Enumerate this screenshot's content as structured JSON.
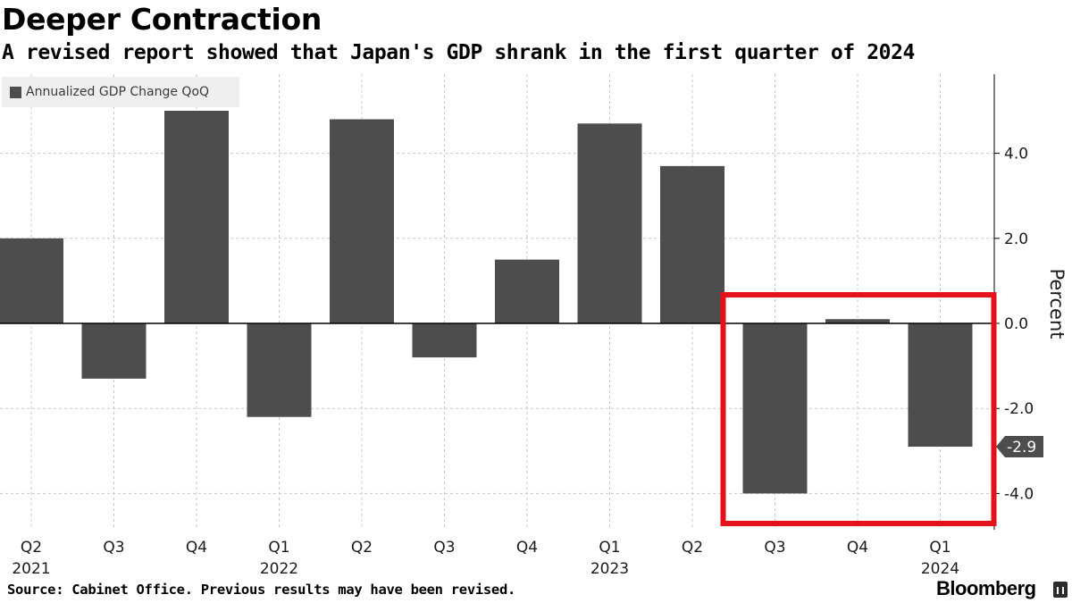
{
  "title": "Deeper Contraction",
  "subtitle": "A revised report showed that Japan's GDP shrank in the first quarter of 2024",
  "legend_label": "Annualized GDP Change QoQ",
  "source": "Source: Cabinet Office. Previous results may have been revised.",
  "brand": "Bloomberg",
  "colors": {
    "bar": "#4d4d4d",
    "highlight_box": "#e3121b",
    "grid": "#c8c8c8",
    "value_tag": "#4d4d4d"
  },
  "chart_data": {
    "type": "bar",
    "title": "Deeper Contraction",
    "subtitle": "A revised report showed that Japan's GDP shrank in the first quarter of 2024",
    "categories": [
      "Q2",
      "Q3",
      "Q4",
      "Q1",
      "Q2",
      "Q3",
      "Q4",
      "Q1",
      "Q2",
      "Q3",
      "Q4",
      "Q1"
    ],
    "year_labels": [
      "2021",
      "",
      "",
      "2022",
      "",
      "",
      "",
      "2023",
      "",
      "",
      "",
      "2024"
    ],
    "values": [
      2.0,
      -1.3,
      5.0,
      -2.2,
      4.8,
      -0.8,
      1.5,
      4.7,
      3.7,
      -4.0,
      0.1,
      -2.9
    ],
    "series": [
      {
        "name": "Annualized GDP Change QoQ",
        "values": [
          2.0,
          -1.3,
          5.0,
          -2.2,
          4.8,
          -0.8,
          1.5,
          4.7,
          3.7,
          -4.0,
          0.1,
          -2.9
        ]
      }
    ],
    "ylabel": "Percent",
    "ylim": [
      -4.9,
      5.9
    ],
    "yticks": [
      4.0,
      2.0,
      0.0,
      -2.0,
      -4.0
    ],
    "ytick_labels": [
      "4.0",
      "2.0",
      "0.0",
      "-2.0",
      "-4.0"
    ],
    "last_value_label": "-2.9",
    "highlighted_categories": [
      "Q3 2023",
      "Q4 2023",
      "Q1 2024"
    ],
    "y_axis_position": "right",
    "grid": true,
    "legend_position": "top-left"
  }
}
